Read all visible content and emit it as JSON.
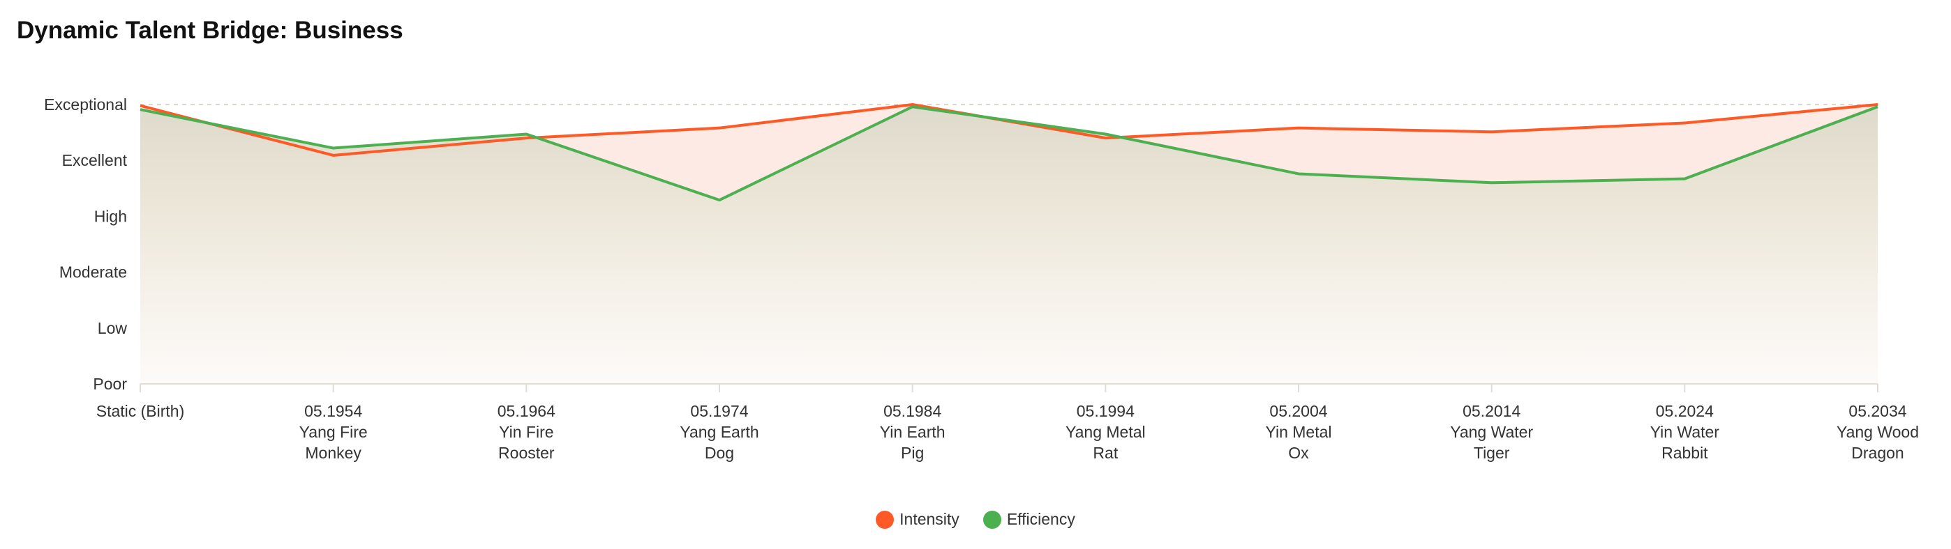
{
  "chart_data": {
    "type": "line",
    "title": "Dynamic Talent Bridge: Business",
    "xlabel": "",
    "ylabel": "",
    "y_levels": [
      "Poor",
      "Low",
      "Moderate",
      "High",
      "Excellent",
      "Exceptional"
    ],
    "ylim": [
      0,
      5
    ],
    "grid": true,
    "legend_position": "bottom-center",
    "categories": [
      [
        "Static (Birth)"
      ],
      [
        "05.1954",
        "Yang Fire",
        "Monkey"
      ],
      [
        "05.1964",
        "Yin Fire",
        "Rooster"
      ],
      [
        "05.1974",
        "Yang Earth",
        "Dog"
      ],
      [
        "05.1984",
        "Yin Earth",
        "Pig"
      ],
      [
        "05.1994",
        "Yang Metal",
        "Rat"
      ],
      [
        "05.2004",
        "Yin Metal",
        "Ox"
      ],
      [
        "05.2014",
        "Yang Water",
        "Tiger"
      ],
      [
        "05.2024",
        "Yin Water",
        "Rabbit"
      ],
      [
        "05.2034",
        "Yang Wood",
        "Dragon"
      ]
    ],
    "series": [
      {
        "name": "Intensity",
        "color": "#ff5a26",
        "fill": "#fdeae4",
        "values": [
          4.98,
          4.09,
          4.4,
          4.58,
          5.0,
          4.4,
          4.58,
          4.51,
          4.67,
          5.0
        ]
      },
      {
        "name": "Efficiency",
        "color": "#4caf50",
        "values": [
          4.91,
          4.22,
          4.47,
          3.29,
          4.96,
          4.47,
          3.76,
          3.6,
          3.67,
          4.96
        ]
      }
    ]
  }
}
